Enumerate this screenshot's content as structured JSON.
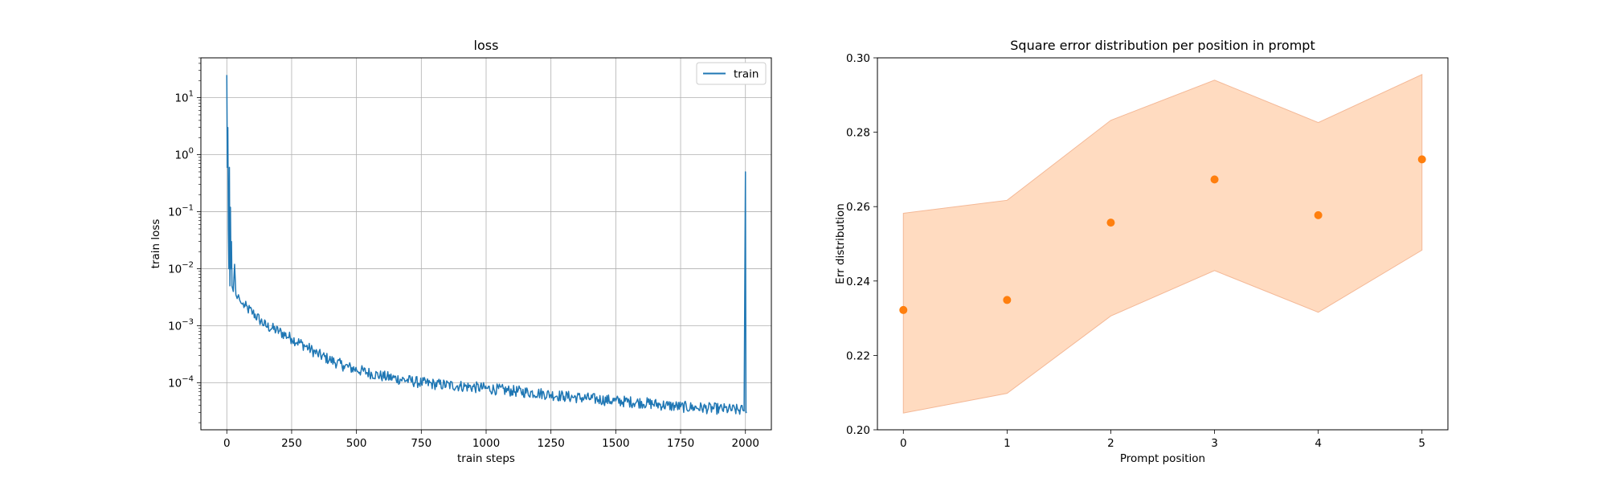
{
  "chart_data": [
    {
      "type": "line",
      "title": "loss",
      "xlabel": "train steps",
      "ylabel": "train loss",
      "yscale": "log",
      "xlim": [
        -100,
        2100
      ],
      "ylim": [
        1.5e-05,
        50
      ],
      "xticks": [
        0,
        250,
        500,
        750,
        1000,
        1250,
        1500,
        1750,
        2000
      ],
      "xtick_labels": [
        "0",
        "250",
        "500",
        "750",
        "1000",
        "1250",
        "1500",
        "1750",
        "2000"
      ],
      "ytick_labels": [
        {
          "base": "10",
          "exp": "1",
          "value": 10
        },
        {
          "base": "10",
          "exp": "0",
          "value": 1
        },
        {
          "base": "10",
          "exp": "−1",
          "value": 0.1
        },
        {
          "base": "10",
          "exp": "−2",
          "value": 0.01
        },
        {
          "base": "10",
          "exp": "−3",
          "value": 0.001
        },
        {
          "base": "10",
          "exp": "−4",
          "value": 0.0001
        }
      ],
      "grid": true,
      "legend": {
        "location": "upper right"
      },
      "series": [
        {
          "name": "train",
          "color": "#1f77b4",
          "x": [
            0,
            2,
            4,
            6,
            8,
            10,
            12,
            14,
            16,
            18,
            20,
            25,
            30,
            35,
            40,
            45,
            50,
            55,
            60,
            70,
            80,
            100,
            125,
            150,
            175,
            200,
            250,
            300,
            350,
            400,
            450,
            500,
            600,
            700,
            750,
            800,
            900,
            1000,
            1100,
            1200,
            1250,
            1300,
            1400,
            1500,
            1600,
            1700,
            1750,
            1800,
            1900,
            1990,
            1995,
            2000,
            2002,
            2005
          ],
          "y": [
            25,
            0.6,
            3,
            0.05,
            0.01,
            0.6,
            0.005,
            0.12,
            0.01,
            0.03,
            0.005,
            0.004,
            0.012,
            0.0035,
            0.003,
            0.0035,
            0.0028,
            0.0025,
            0.0024,
            0.0022,
            0.002,
            0.0017,
            0.0013,
            0.001,
            0.0009,
            0.0008,
            0.0006,
            0.00045,
            0.00032,
            0.00025,
            0.0002,
            0.00017,
            0.00013,
            0.00011,
            0.0001,
            9.5e-05,
            8.8e-05,
            8e-05,
            7.2e-05,
            6.6e-05,
            6.2e-05,
            5.8e-05,
            5.3e-05,
            4.8e-05,
            4.5e-05,
            4e-05,
            3.8e-05,
            3.7e-05,
            3.5e-05,
            3.3e-05,
            3.2e-05,
            0.5,
            3e-05,
            3.1e-05
          ]
        }
      ]
    },
    {
      "type": "scatter",
      "title": "Square error distribution per position in prompt",
      "xlabel": "Prompt position",
      "ylabel": "Err distribution",
      "xlim": [
        -0.25,
        5.25
      ],
      "ylim": [
        0.2,
        0.3
      ],
      "xticks": [
        0,
        1,
        2,
        3,
        4,
        5
      ],
      "xtick_labels": [
        "0",
        "1",
        "2",
        "3",
        "4",
        "5"
      ],
      "yticks": [
        0.2,
        0.22,
        0.24,
        0.26,
        0.28,
        0.3
      ],
      "ytick_labels": [
        "0.20",
        "0.22",
        "0.24",
        "0.26",
        "0.28",
        "0.30"
      ],
      "grid": false,
      "color": "#ff7f0e",
      "band_color": "#ffdbc0",
      "band_edge_color": "#f4b896",
      "x": [
        0,
        1,
        2,
        3,
        4,
        5
      ],
      "y": [
        0.2322,
        0.2349,
        0.2557,
        0.2673,
        0.2577,
        0.2727
      ],
      "band_upper": [
        0.2582,
        0.2617,
        0.2832,
        0.294,
        0.2826,
        0.2955
      ],
      "band_lower": [
        0.2045,
        0.2098,
        0.2306,
        0.2428,
        0.2316,
        0.2483
      ]
    }
  ]
}
